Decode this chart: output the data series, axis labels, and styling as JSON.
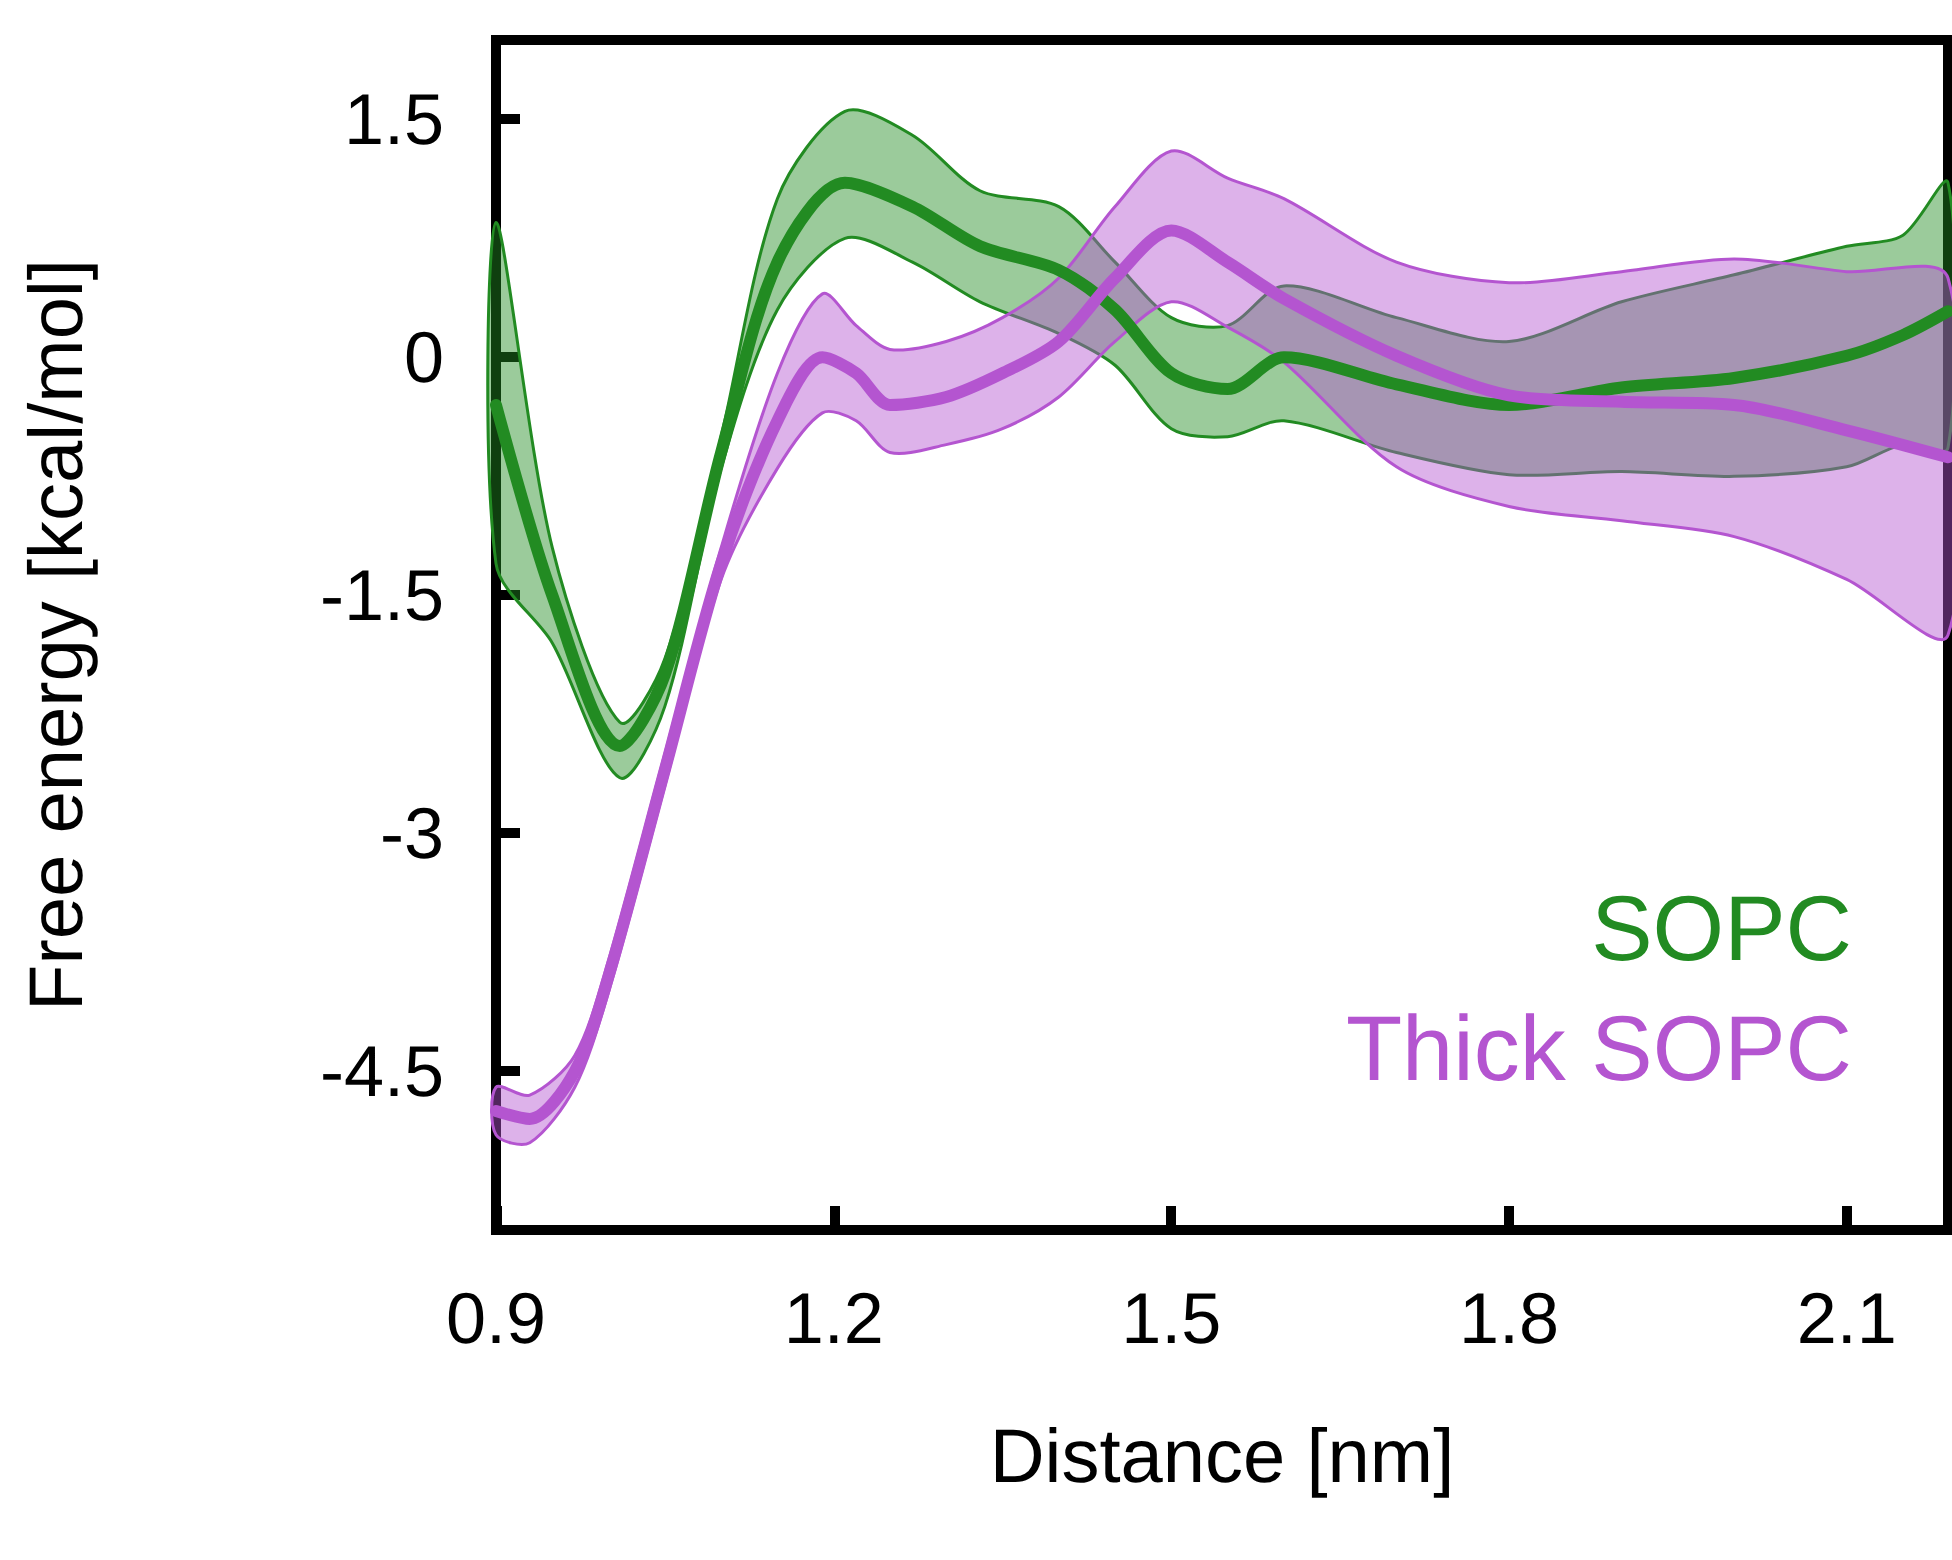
{
  "chart_data": {
    "type": "line",
    "xlabel": "Distance [nm]",
    "ylabel": "Free energy [kcal/mol]",
    "xlim": [
      0.9,
      2.19
    ],
    "xticks": [
      0.9,
      1.2,
      1.5,
      1.8,
      2.1
    ],
    "ylim": [
      -5.5,
      2
    ],
    "yticks": [
      -4.5,
      -3,
      -1.5,
      0,
      1.5
    ],
    "legend": "bottom right",
    "marker": "none",
    "line_style": "solid",
    "grid": false,
    "series": [
      {
        "name": "SOPC",
        "color": "#228b22",
        "x": [
          0.9,
          0.95,
          1.01,
          1.05,
          1.1,
          1.15,
          1.21,
          1.27,
          1.33,
          1.4,
          1.45,
          1.5,
          1.55,
          1.6,
          1.7,
          1.8,
          1.9,
          2.0,
          2.1,
          2.15,
          2.19
        ],
        "values": [
          -0.3,
          -1.5,
          -2.45,
          -2.0,
          -0.6,
          0.6,
          1.1,
          0.95,
          0.7,
          0.55,
          0.3,
          -0.1,
          -0.2,
          0.0,
          -0.17,
          -0.3,
          -0.19,
          -0.13,
          0.01,
          0.14,
          0.29
        ],
        "lower": [
          -1.3,
          -1.8,
          -2.65,
          -2.2,
          -0.7,
          0.3,
          0.75,
          0.6,
          0.35,
          0.15,
          -0.05,
          -0.45,
          -0.5,
          -0.4,
          -0.6,
          -0.74,
          -0.72,
          -0.75,
          -0.69,
          -0.55,
          -0.57
        ],
        "upper": [
          0.85,
          -1.2,
          -2.3,
          -1.9,
          -0.5,
          1.0,
          1.55,
          1.4,
          1.05,
          0.95,
          0.6,
          0.25,
          0.2,
          0.45,
          0.25,
          0.1,
          0.35,
          0.52,
          0.7,
          0.77,
          1.1
        ]
      },
      {
        "name": "Thick SOPC",
        "color": "#b455d0",
        "x": [
          0.9,
          0.93,
          0.97,
          1.0,
          1.05,
          1.1,
          1.15,
          1.19,
          1.22,
          1.25,
          1.3,
          1.35,
          1.4,
          1.45,
          1.5,
          1.55,
          1.6,
          1.7,
          1.8,
          1.9,
          2.0,
          2.1,
          2.19
        ],
        "values": [
          -4.75,
          -4.8,
          -4.5,
          -3.9,
          -2.6,
          -1.3,
          -0.4,
          0.0,
          -0.1,
          -0.3,
          -0.25,
          -0.1,
          0.1,
          0.5,
          0.8,
          0.6,
          0.37,
          0.01,
          -0.24,
          -0.28,
          -0.3,
          -0.46,
          -0.63
        ],
        "lower": [
          -4.9,
          -4.95,
          -4.6,
          -4.0,
          -2.7,
          -1.4,
          -0.7,
          -0.35,
          -0.4,
          -0.6,
          -0.55,
          -0.45,
          -0.25,
          0.1,
          0.35,
          0.19,
          -0.03,
          -0.69,
          -0.94,
          -1.03,
          -1.13,
          -1.4,
          -1.75
        ],
        "upper": [
          -4.6,
          -4.65,
          -4.4,
          -3.8,
          -2.5,
          -1.2,
          -0.1,
          0.4,
          0.2,
          0.05,
          0.1,
          0.25,
          0.5,
          0.95,
          1.3,
          1.13,
          1.0,
          0.6,
          0.47,
          0.54,
          0.62,
          0.54,
          0.5
        ]
      }
    ]
  }
}
